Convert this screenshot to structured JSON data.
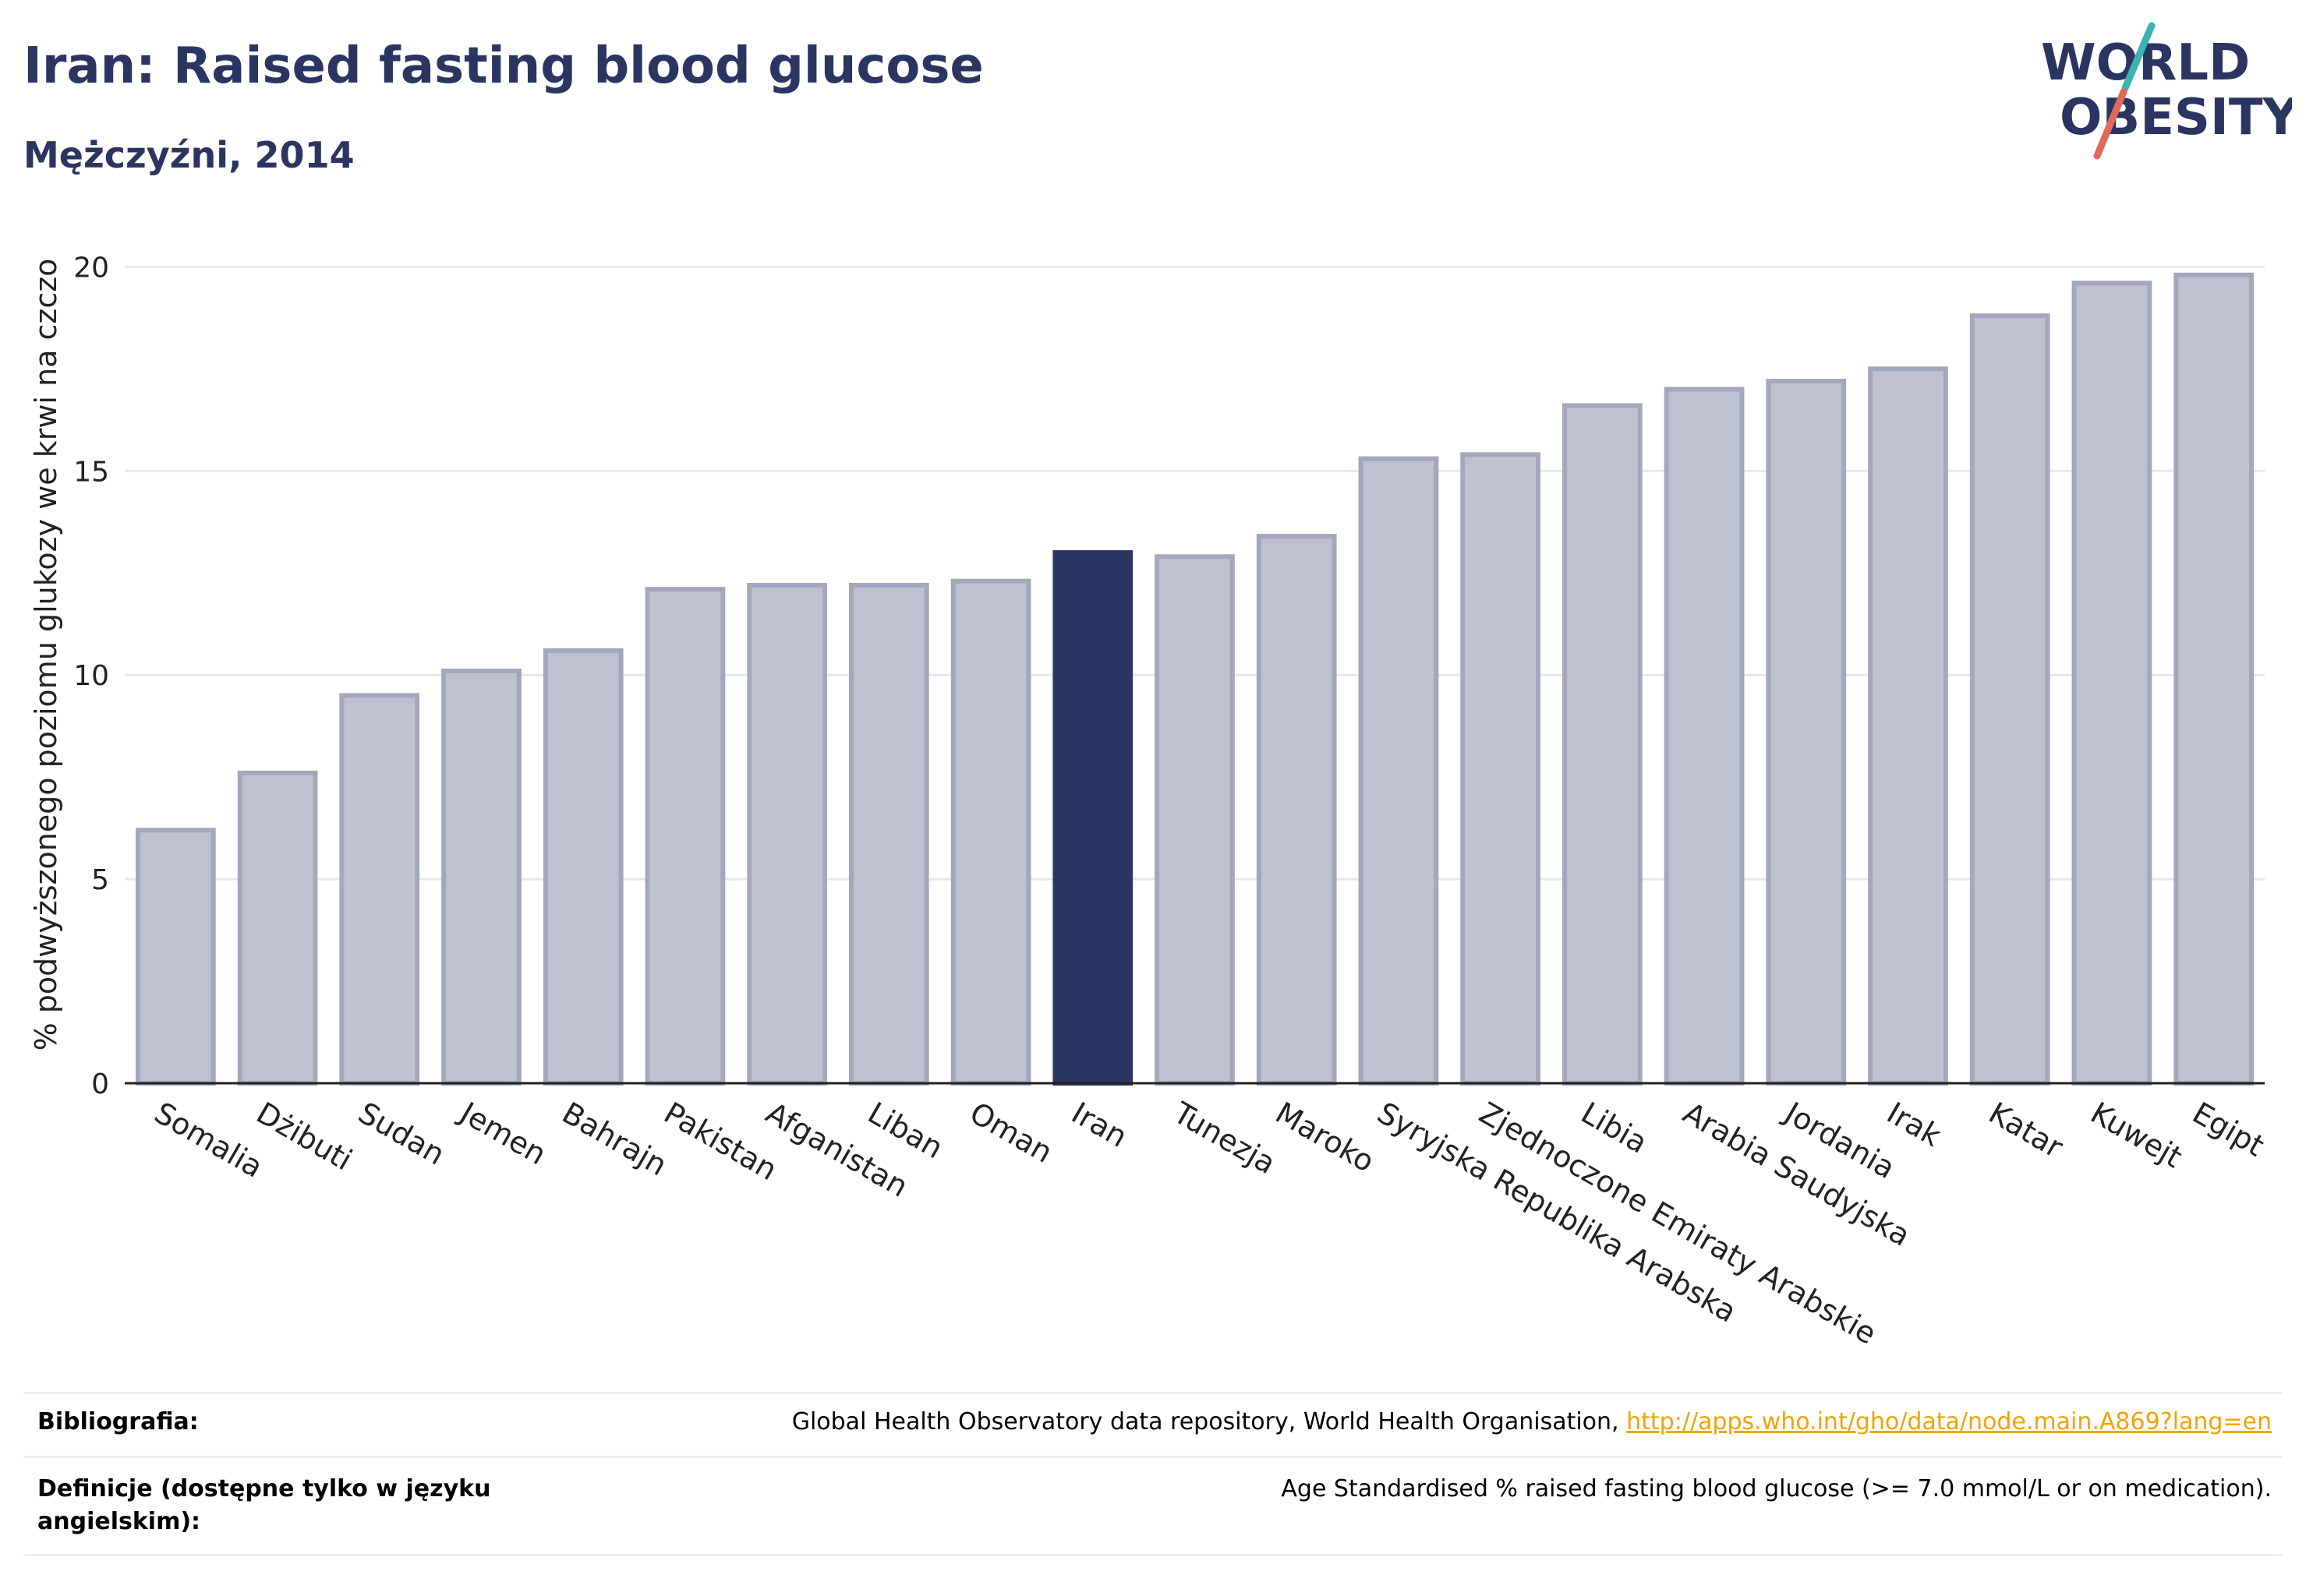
{
  "title": "Iran: Raised fasting blood glucose",
  "subtitle": "Mężczyźni, 2014",
  "logo": {
    "line1": "WORLD",
    "line2": "OBESITY"
  },
  "colors": {
    "highlight": "#2b3561",
    "bar": "#bec1cf",
    "bar_stroke": "#a3a8bd",
    "accent_red": "#e2685a",
    "accent_teal": "#3bb3b0",
    "link": "#f0a500"
  },
  "chart_data": {
    "type": "bar",
    "title": "Iran: Raised fasting blood glucose",
    "subtitle": "Mężczyźni, 2014",
    "xlabel": "",
    "ylabel": "% podwyższonego poziomu glukozy we krwi na czczo",
    "ylim": [
      0,
      21
    ],
    "yticks": [
      0,
      5,
      10,
      15,
      20
    ],
    "grid": true,
    "highlight": "Iran",
    "categories": [
      "Somalia",
      "Dżibuti",
      "Sudan",
      "Jemen",
      "Bahrajn",
      "Pakistan",
      "Afganistan",
      "Liban",
      "Oman",
      "Iran",
      "Tunezja",
      "Maroko",
      "Syryjska Republika Arabska",
      "Zjednoczone Emiraty Arabskie",
      "Libia",
      "Arabia Saudyjska",
      "Jordania",
      "Irak",
      "Katar",
      "Kuwejt",
      "Egipt"
    ],
    "values": [
      6.2,
      7.6,
      9.5,
      10.1,
      10.6,
      12.1,
      12.2,
      12.2,
      12.3,
      13.0,
      12.9,
      13.4,
      15.3,
      15.4,
      16.6,
      17.0,
      17.2,
      17.5,
      18.8,
      19.6,
      19.8
    ]
  },
  "footer": {
    "bibliography_label": "Bibliografia:",
    "bibliography_text": "Global Health Observatory data repository, World Health Organisation,",
    "bibliography_link": "http://apps.who.int/gho/data/node.main.A869?lang=en",
    "definitions_label": "Definicje (dostępne tylko w języku angielskim):",
    "definitions_text": "Age Standardised % raised fasting blood glucose (>= 7.0 mmol/L or on medication)."
  }
}
